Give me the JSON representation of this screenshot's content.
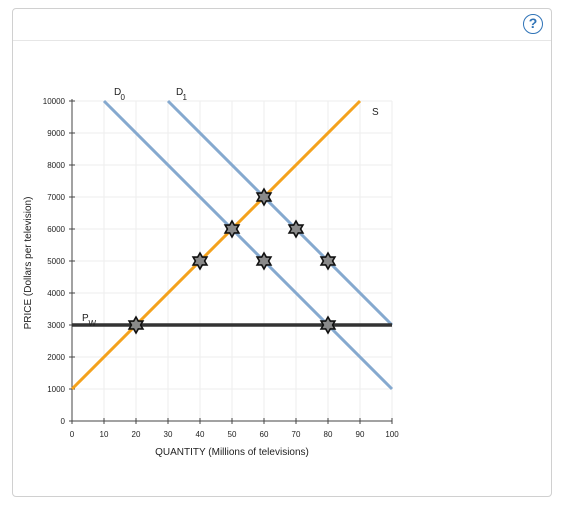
{
  "help": {
    "label": "?"
  },
  "chart_data": {
    "type": "line",
    "xlabel": "QUANTITY (Millions of televisions)",
    "ylabel": "PRICE (Dollars per television)",
    "xlim": [
      0,
      100
    ],
    "ylim": [
      0,
      10000
    ],
    "x_ticks": [
      0,
      10,
      20,
      30,
      40,
      50,
      60,
      70,
      80,
      90,
      100
    ],
    "y_ticks": [
      0,
      1000,
      2000,
      3000,
      4000,
      5000,
      6000,
      7000,
      8000,
      9000,
      10000
    ],
    "grid": true,
    "series": [
      {
        "name": "D",
        "subscript": "0",
        "color": "#85a9cf",
        "points": [
          [
            10,
            10000
          ],
          [
            100,
            1000
          ]
        ]
      },
      {
        "name": "D",
        "subscript": "1",
        "color": "#85a9cf",
        "points": [
          [
            30,
            10000
          ],
          [
            100,
            3000
          ]
        ]
      },
      {
        "name": "S",
        "subscript": "",
        "color": "#f4a21d",
        "points": [
          [
            0,
            1000
          ],
          [
            90,
            10000
          ]
        ]
      },
      {
        "name": "P",
        "subscript": "W",
        "color": "#333333",
        "points": [
          [
            0,
            3000
          ],
          [
            100,
            3000
          ]
        ]
      }
    ],
    "markers": [
      {
        "x": 20,
        "y": 3000
      },
      {
        "x": 40,
        "y": 5000
      },
      {
        "x": 50,
        "y": 6000
      },
      {
        "x": 60,
        "y": 5000
      },
      {
        "x": 60,
        "y": 7000
      },
      {
        "x": 70,
        "y": 6000
      },
      {
        "x": 80,
        "y": 5000
      },
      {
        "x": 80,
        "y": 3000
      }
    ]
  }
}
